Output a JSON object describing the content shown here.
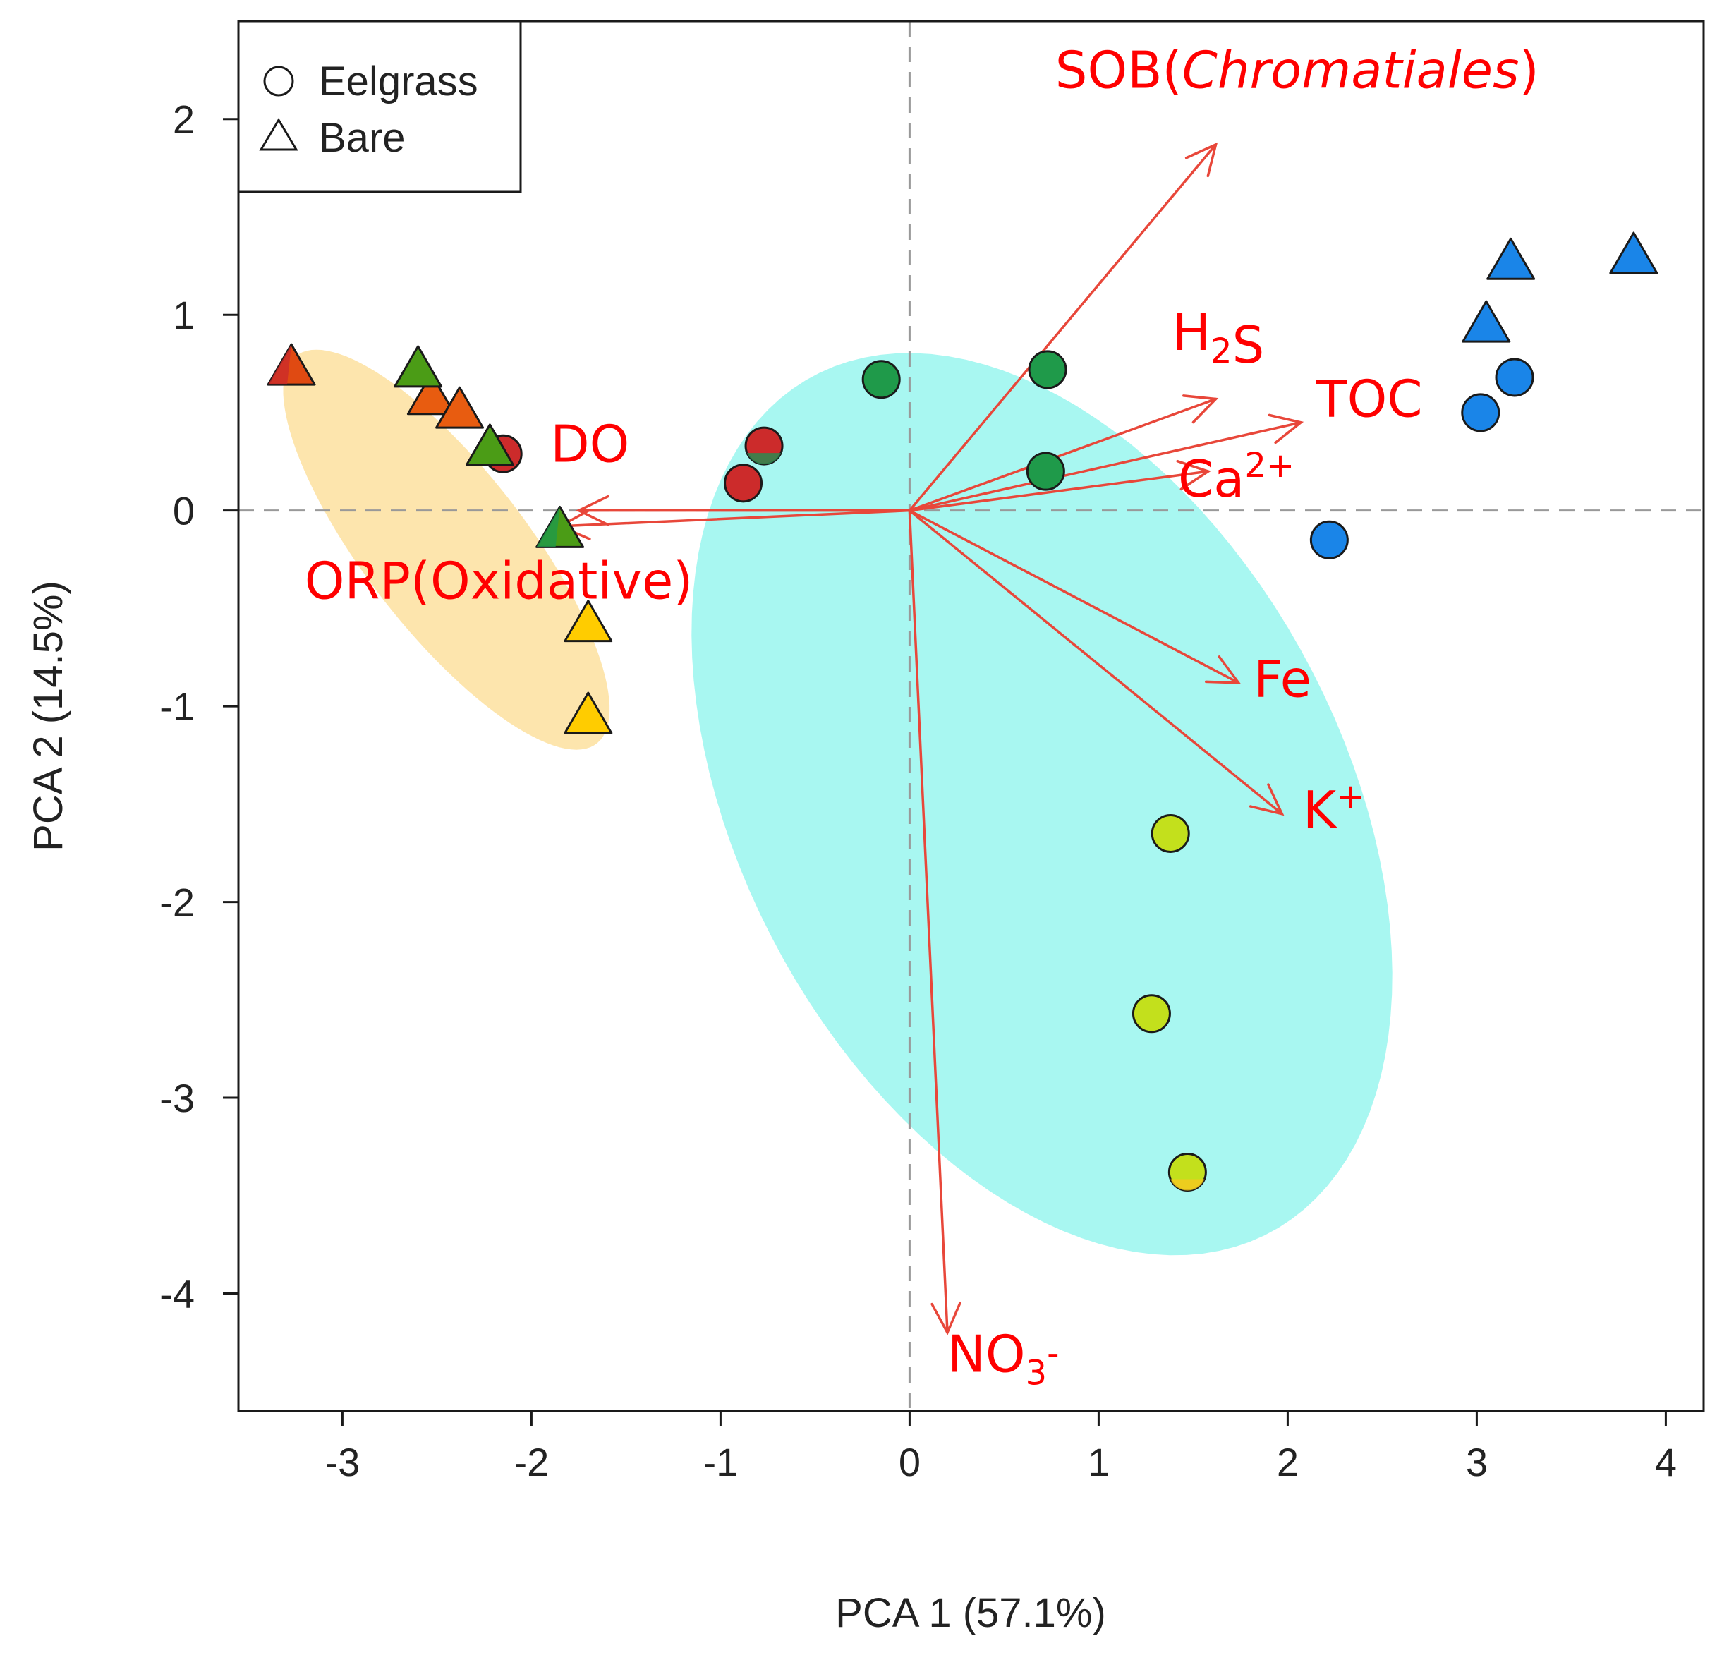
{
  "chart_data": {
    "type": "scatter",
    "subtype": "pca-biplot",
    "xlabel": "PCA 1 (57.1%)",
    "ylabel": "PCA 2 (14.5%)",
    "xlim": [
      -3.55,
      4.2
    ],
    "ylim": [
      -4.6,
      2.5
    ],
    "xticks": [
      -3,
      -2,
      -1,
      0,
      1,
      2,
      3,
      4
    ],
    "yticks": [
      -4,
      -3,
      -2,
      -1,
      0,
      1,
      2
    ],
    "reference_lines": [
      0,
      0
    ],
    "legend": {
      "position": "top-left",
      "entries": [
        {
          "shape": "circle",
          "label": "Eelgrass"
        },
        {
          "shape": "triangle",
          "label": "Bare"
        }
      ]
    },
    "colors": {
      "arrow": "#e8473a",
      "label": "#ff0000",
      "ellipse_bare": "#fde5ad",
      "ellipse_eelgrass": "#a8f7f1",
      "grid_line": "#999999"
    },
    "ellipses": [
      {
        "name": "bare",
        "center": [
          -2.45,
          -0.2
        ],
        "semi_major": 1.27,
        "semi_minor": 0.42,
        "angle_deg": -51,
        "color": "#fde5ad"
      },
      {
        "name": "eelgrass",
        "center": [
          0.7,
          -1.5
        ],
        "semi_major": 2.5,
        "semi_minor": 1.58,
        "angle_deg": -60,
        "color": "#a8f7f1"
      }
    ],
    "points": [
      {
        "x": 1.38,
        "y": -1.65,
        "shape": "circle",
        "fill": "#c3e01c"
      },
      {
        "x": 1.28,
        "y": -2.57,
        "shape": "circle",
        "fill": "#c3e01c"
      },
      {
        "x": 1.47,
        "y": -3.38,
        "shape": "circle",
        "fill": "#c3e01c",
        "fill2": "#f5c91e"
      },
      {
        "x": -1.7,
        "y": -0.58,
        "shape": "triangle",
        "fill": "#ffcc00"
      },
      {
        "x": -1.7,
        "y": -1.05,
        "shape": "triangle",
        "fill": "#ffcc00"
      },
      {
        "x": -2.15,
        "y": 0.29,
        "shape": "circle",
        "fill": "#cc2b2b"
      },
      {
        "x": -0.88,
        "y": 0.14,
        "shape": "circle",
        "fill": "#cc2b2b"
      },
      {
        "x": -0.77,
        "y": 0.33,
        "shape": "circle",
        "fill": "#cc2b2b",
        "fill2": "#2a8a50"
      },
      {
        "x": -3.27,
        "y": 0.73,
        "shape": "triangle",
        "fill": "#e04a12",
        "fill2": "#cc2b2b"
      },
      {
        "x": -2.53,
        "y": 0.58,
        "shape": "triangle",
        "fill": "#e85c10"
      },
      {
        "x": -2.38,
        "y": 0.51,
        "shape": "triangle",
        "fill": "#e85c10"
      },
      {
        "x": -0.15,
        "y": 0.67,
        "shape": "circle",
        "fill": "#1f9a4a"
      },
      {
        "x": 0.73,
        "y": 0.72,
        "shape": "circle",
        "fill": "#1f9a4a"
      },
      {
        "x": 0.72,
        "y": 0.2,
        "shape": "circle",
        "fill": "#1f9a4a"
      },
      {
        "x": -2.6,
        "y": 0.72,
        "shape": "triangle",
        "fill": "#4b9c16"
      },
      {
        "x": -2.22,
        "y": 0.32,
        "shape": "triangle",
        "fill": "#4b9c16"
      },
      {
        "x": -1.85,
        "y": -0.1,
        "shape": "triangle",
        "fill": "#4b9c16",
        "fill2": "#1f9a4a"
      },
      {
        "x": 3.2,
        "y": 0.68,
        "shape": "circle",
        "fill": "#1a85e8"
      },
      {
        "x": 3.02,
        "y": 0.5,
        "shape": "circle",
        "fill": "#1a85e8"
      },
      {
        "x": 2.22,
        "y": -0.15,
        "shape": "circle",
        "fill": "#1a85e8"
      },
      {
        "x": 3.18,
        "y": 1.27,
        "shape": "triangle",
        "fill": "#1a85e8"
      },
      {
        "x": 3.05,
        "y": 0.95,
        "shape": "triangle",
        "fill": "#1a85e8"
      },
      {
        "x": 3.83,
        "y": 1.3,
        "shape": "triangle",
        "fill": "#1a85e8"
      }
    ],
    "vectors": [
      {
        "name": "SOB(Chromatiales)",
        "label_parts": [
          {
            "t": "SOB("
          },
          {
            "t": "Chromatiales",
            "italic": true
          },
          {
            "t": ")"
          }
        ],
        "x": 1.62,
        "y": 1.87,
        "label_x": 0.77,
        "label_y": 2.16
      },
      {
        "name": "H2S",
        "label_parts": [
          {
            "t": "H"
          },
          {
            "t": "2",
            "sub": true
          },
          {
            "t": "S"
          }
        ],
        "x": 1.62,
        "y": 0.57,
        "label_x": 1.39,
        "label_y": 0.82
      },
      {
        "name": "TOC",
        "label_parts": [
          {
            "t": "TOC"
          }
        ],
        "x": 2.07,
        "y": 0.45,
        "label_x": 2.15,
        "label_y": 0.48
      },
      {
        "name": "Ca2+",
        "label_parts": [
          {
            "t": "Ca"
          },
          {
            "t": "2+",
            "sup": true
          }
        ],
        "x": 1.58,
        "y": 0.2,
        "label_x": 1.42,
        "label_y": 0.07
      },
      {
        "name": "Fe",
        "label_parts": [
          {
            "t": "Fe"
          }
        ],
        "x": 1.74,
        "y": -0.88,
        "label_x": 1.82,
        "label_y": -0.95
      },
      {
        "name": "K+",
        "label_parts": [
          {
            "t": "K"
          },
          {
            "t": "+",
            "sup": true
          }
        ],
        "x": 1.97,
        "y": -1.55,
        "label_x": 2.08,
        "label_y": -1.62
      },
      {
        "name": "NO3-",
        "label_parts": [
          {
            "t": "NO"
          },
          {
            "t": "3",
            "sub": true
          },
          {
            "t": "-",
            "sup": true
          }
        ],
        "x": 0.2,
        "y": -4.2,
        "label_x": 0.2,
        "label_y": -4.4
      },
      {
        "name": "DO",
        "label_parts": [
          {
            "t": "DO"
          }
        ],
        "x": -1.75,
        "y": 0.0,
        "label_x": -1.9,
        "label_y": 0.25
      },
      {
        "name": "ORP(Oxidative)",
        "label_parts": [
          {
            "t": "ORP(Oxidative)"
          }
        ],
        "x": -1.85,
        "y": -0.08,
        "label_x": -3.2,
        "label_y": -0.45
      }
    ]
  }
}
